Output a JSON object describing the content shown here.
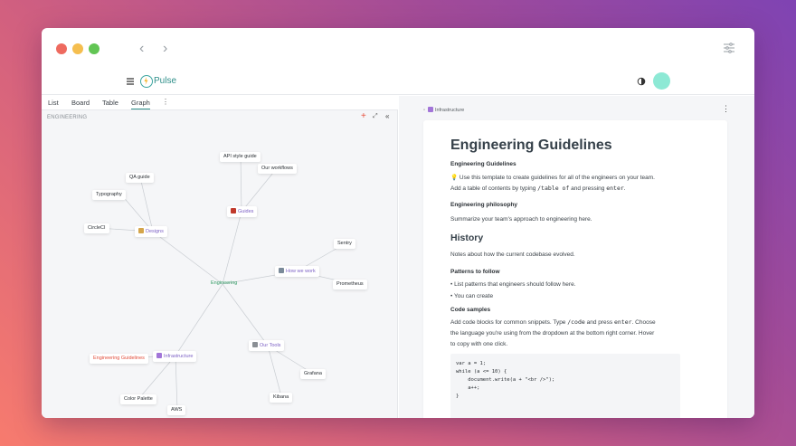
{
  "app": {
    "name": "Pulse"
  },
  "view_tabs": [
    "List",
    "Board",
    "Table",
    "Graph"
  ],
  "active_tab": "Graph",
  "graph": {
    "section": "ENGINEERING",
    "nodes": {
      "api": "API style guide",
      "workflows": "Our workflows",
      "qa": "QA guide",
      "typography": "Typography",
      "circleci": "CircleCI",
      "designs": "Designs",
      "guides": "Guides",
      "sentry": "Sentry",
      "howwework": "How we work",
      "engineering": "Engineering",
      "prometheus": "Prometheus",
      "ourtools": "Our Tools",
      "engguidelines": "Engineering Guidelines",
      "infrastructure": "Infrastructure",
      "grafana": "Grafana",
      "colorpalette": "Color Palette",
      "kibana": "Kibana",
      "aws": "AWS"
    }
  },
  "doc": {
    "breadcrumb": "Infrastructure",
    "title": "Engineering Guidelines",
    "sub1": "Engineering Guidelines",
    "intro_a": "💡 Use this template to create guidelines for all of the engineers on your team.",
    "intro_b1": "Add a table of contents by typing ",
    "intro_b_code1": "/table of",
    "intro_b2": " and pressing ",
    "intro_b_code2": "enter",
    "intro_b3": ".",
    "philosophy_title": "Engineering philosophy",
    "philosophy_text": "Summarize your team's approach to engineering here.",
    "history_title": "History",
    "history_text": "Notes about how the current codebase evolved.",
    "patterns_title": "Patterns to follow",
    "patterns_items": [
      "• List patterns that engineers should follow here.",
      "• You can create"
    ],
    "code_title": "Code samples",
    "code_text_1a": "Add code blocks for common snippets. Type ",
    "code_text_1code": "/code",
    "code_text_1b": " and press ",
    "code_text_1code2": "enter",
    "code_text_1c": ". Choose",
    "code_text_2": "the language you're using from the dropdown at the bottom right corner. Hover",
    "code_text_3": "to copy with one click.",
    "code_lines": [
      "var a = 1;",
      "while (a <= 10) {",
      "    document.write(a + \"<br />\");",
      "    a++;",
      "}"
    ]
  },
  "colors": {
    "accent": "#2f8f8a",
    "avatar": "#8de9d5",
    "engineering_node": "#2f9a62",
    "highlight_node": "#e24c3a"
  }
}
